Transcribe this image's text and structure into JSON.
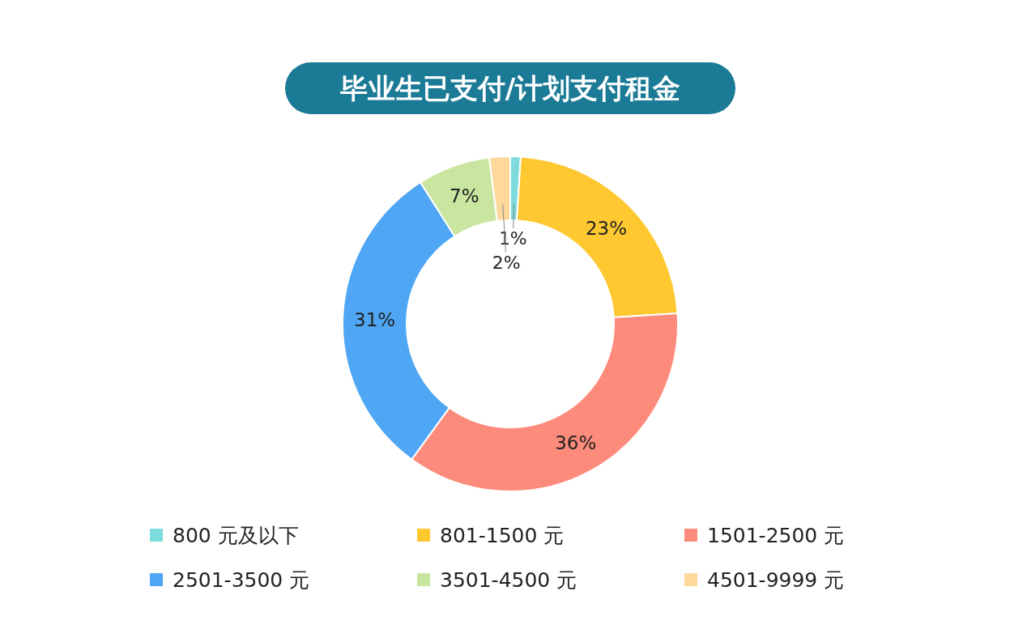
{
  "chart_data": {
    "type": "donut",
    "title": "毕业生已支付/计划支付租金",
    "categories": [
      "800 元及以下",
      "801-1500 元",
      "1501-2500 元",
      "2501-3500 元",
      "3501-4500 元",
      "4501-9999 元"
    ],
    "values": [
      1,
      23,
      36,
      31,
      7,
      2
    ],
    "colors": [
      "#7ddbdc",
      "#ffc830",
      "#fd8b7b",
      "#4fa6f4",
      "#c9e6a1",
      "#fdd89b"
    ],
    "value_labels": [
      "1%",
      "23%",
      "36%",
      "31%",
      "7%",
      "2%"
    ],
    "legend": "bottom"
  }
}
